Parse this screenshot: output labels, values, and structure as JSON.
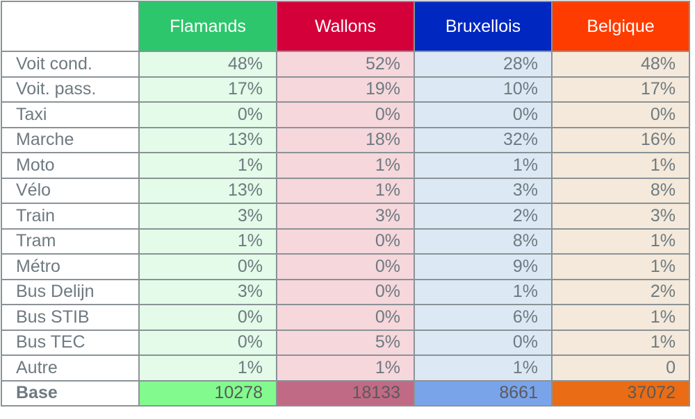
{
  "table": {
    "columns": [
      "Flamands",
      "Wallons",
      "Bruxellois",
      "Belgique"
    ],
    "rows": [
      {
        "label": "Voit cond.",
        "values": [
          "48%",
          "52%",
          "28%",
          "48%"
        ]
      },
      {
        "label": "Voit. pass.",
        "values": [
          "17%",
          "19%",
          "10%",
          "17%"
        ]
      },
      {
        "label": "Taxi",
        "values": [
          "0%",
          "0%",
          "0%",
          "0%"
        ]
      },
      {
        "label": "Marche",
        "values": [
          "13%",
          "18%",
          "32%",
          "16%"
        ]
      },
      {
        "label": "Moto",
        "values": [
          "1%",
          "1%",
          "1%",
          "1%"
        ]
      },
      {
        "label": "Vélo",
        "values": [
          "13%",
          "1%",
          "3%",
          "8%"
        ]
      },
      {
        "label": "Train",
        "values": [
          "3%",
          "3%",
          "2%",
          "3%"
        ]
      },
      {
        "label": "Tram",
        "values": [
          "1%",
          "0%",
          "8%",
          "1%"
        ]
      },
      {
        "label": "Métro",
        "values": [
          "0%",
          "0%",
          "9%",
          "1%"
        ]
      },
      {
        "label": "Bus Delijn",
        "values": [
          "3%",
          "0%",
          "1%",
          "2%"
        ]
      },
      {
        "label": "Bus STIB",
        "values": [
          "0%",
          "0%",
          "6%",
          "1%"
        ]
      },
      {
        "label": "Bus TEC",
        "values": [
          "0%",
          "5%",
          "0%",
          "1%"
        ]
      },
      {
        "label": "Autre",
        "values": [
          "1%",
          "1%",
          "1%",
          "0"
        ]
      }
    ],
    "base": {
      "label": "Base",
      "values": [
        "10278",
        "18133",
        "8661",
        "37072"
      ]
    }
  },
  "colors": {
    "header": [
      "#2dc66c",
      "#d4003a",
      "#0027c0",
      "#ff3c00"
    ],
    "cells": [
      "#e3fbe8",
      "#f5d7dc",
      "#dce9f4",
      "#f4e9da"
    ],
    "base": [
      "#83fa8e",
      "#c06a86",
      "#7aa4ea",
      "#ea6c14"
    ]
  }
}
